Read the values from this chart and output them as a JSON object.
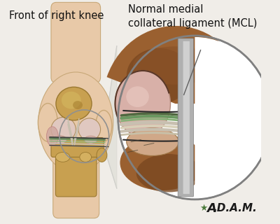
{
  "bg_color": "#f0ede8",
  "title_left": "Front of right knee",
  "title_right": "Normal medial\ncollateral ligament (MCL)",
  "title_fontsize": 10.5,
  "adam_color": "#1a1a1a",
  "adam_green": "#4a7a3a",
  "skin_color": "#e8c9a8",
  "skin_edge": "#c8a878",
  "bone_tan": "#c8a050",
  "bone_light": "#d4b870",
  "cartilage_pink": "#d8b8b0",
  "cartilage_light": "#e0c8c0",
  "lig_green": "#6a9860",
  "lig_white": "#c8c0b0",
  "lig_cream": "#d8d0b8",
  "muscle_brown": "#8B5a30",
  "muscle_dark": "#6a4020",
  "tissue_pink": "#d0a8a0",
  "tissue_light": "#e8c0b8",
  "zoom_bg_white": "#ffffff",
  "zoom_border": "#808080",
  "mcl_gray": "#b0b0b0",
  "mcl_lgray": "#d0d0d0",
  "arrow_line": "#606060"
}
